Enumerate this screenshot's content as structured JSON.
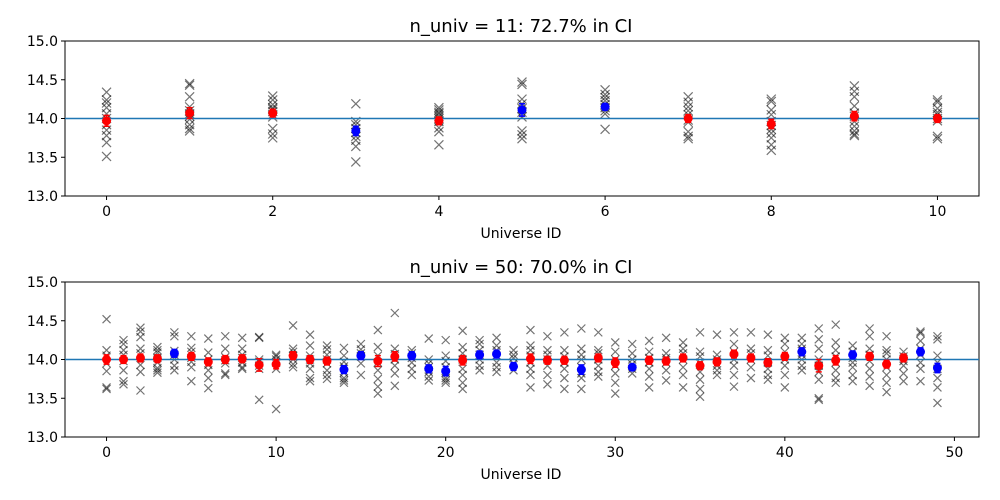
{
  "colors": {
    "ref_line": "#1f77b4",
    "in_ci": "#ff0000",
    "out_ci": "#0000ff",
    "sample": "#000000"
  },
  "chart_data": [
    {
      "type": "scatter",
      "title": "n_univ = 11: 72.7% in CI",
      "xlabel": "Universe ID",
      "ylabel": "",
      "xlim": [
        -0.5,
        10.5
      ],
      "ylim": [
        13.0,
        15.0
      ],
      "xticks": [
        0,
        2,
        4,
        6,
        8,
        10
      ],
      "yticks": [
        13.0,
        13.5,
        14.0,
        14.5,
        15.0
      ],
      "reference_line": 14.0,
      "samples": [
        [
          13.51,
          13.69,
          13.78,
          13.85,
          13.92,
          14.0,
          14.06,
          14.14,
          14.2,
          14.24,
          14.34
        ],
        [
          13.84,
          13.87,
          13.92,
          13.99,
          14.03,
          14.06,
          14.1,
          14.15,
          14.28,
          14.43,
          14.45
        ],
        [
          13.75,
          13.8,
          13.87,
          14.02,
          14.05,
          14.09,
          14.12,
          14.14,
          14.18,
          14.24,
          14.29
        ],
        [
          13.44,
          13.64,
          13.72,
          13.77,
          13.82,
          13.87,
          13.92,
          13.96,
          14.19
        ],
        [
          13.66,
          13.83,
          13.88,
          13.96,
          14.0,
          14.03,
          14.06,
          14.08,
          14.11,
          14.14
        ],
        [
          13.74,
          13.79,
          13.84,
          14.02,
          14.08,
          14.13,
          14.19,
          14.25,
          14.44,
          14.47
        ],
        [
          13.86,
          14.06,
          14.1,
          14.14,
          14.18,
          14.23,
          14.27,
          14.31,
          14.37
        ],
        [
          13.74,
          13.77,
          13.83,
          13.95,
          13.98,
          14.05,
          14.1,
          14.15,
          14.21,
          14.28
        ],
        [
          13.59,
          13.66,
          13.75,
          13.81,
          13.86,
          13.91,
          13.96,
          14.05,
          14.11,
          14.22,
          14.25
        ],
        [
          13.78,
          13.8,
          13.84,
          13.9,
          13.96,
          14.03,
          14.07,
          14.16,
          14.28,
          14.35,
          14.42
        ],
        [
          13.74,
          13.77,
          13.97,
          14.0,
          14.05,
          14.08,
          14.13,
          14.21,
          14.24
        ]
      ],
      "means": [
        13.97,
        14.07,
        14.07,
        13.84,
        13.97,
        14.11,
        14.15,
        14.0,
        13.93,
        14.03,
        14.0
      ],
      "errors": [
        0.07,
        0.07,
        0.05,
        0.06,
        0.05,
        0.08,
        0.04,
        0.05,
        0.06,
        0.06,
        0.05
      ],
      "in_ci": [
        true,
        true,
        true,
        false,
        true,
        false,
        false,
        true,
        true,
        true,
        true
      ]
    },
    {
      "type": "scatter",
      "title": "n_univ = 50: 70.0% in CI",
      "xlabel": "Universe ID",
      "ylabel": "",
      "xlim": [
        -2.45,
        51.45
      ],
      "ylim": [
        13.0,
        15.0
      ],
      "xticks": [
        0,
        10,
        20,
        30,
        40,
        50
      ],
      "yticks": [
        13.0,
        13.5,
        14.0,
        14.5,
        15.0
      ],
      "reference_line": 14.0,
      "means": [
        14.0,
        14.0,
        14.02,
        14.01,
        14.08,
        14.04,
        13.97,
        14.0,
        14.01,
        13.93,
        13.94,
        14.05,
        14.0,
        13.98,
        13.87,
        14.05,
        13.98,
        14.04,
        14.05,
        13.88,
        13.85,
        13.99,
        14.06,
        14.07,
        13.91,
        14.01,
        13.99,
        13.99,
        13.87,
        14.02,
        13.96,
        13.9,
        13.99,
        13.98,
        14.02,
        13.92,
        13.97,
        14.07,
        14.02,
        13.96,
        14.04,
        14.1,
        13.92,
        13.99,
        14.06,
        14.04,
        13.94,
        14.02,
        14.1,
        13.89
      ],
      "errors": [
        0.06,
        0.05,
        0.05,
        0.05,
        0.05,
        0.05,
        0.05,
        0.05,
        0.05,
        0.08,
        0.06,
        0.05,
        0.05,
        0.05,
        0.05,
        0.05,
        0.07,
        0.06,
        0.05,
        0.05,
        0.06,
        0.06,
        0.05,
        0.05,
        0.05,
        0.06,
        0.05,
        0.05,
        0.06,
        0.05,
        0.06,
        0.04,
        0.05,
        0.05,
        0.05,
        0.05,
        0.05,
        0.05,
        0.05,
        0.05,
        0.05,
        0.05,
        0.08,
        0.06,
        0.05,
        0.05,
        0.05,
        0.05,
        0.05,
        0.06
      ],
      "in_ci": [
        true,
        true,
        true,
        true,
        false,
        true,
        true,
        true,
        true,
        true,
        true,
        true,
        true,
        true,
        false,
        false,
        true,
        true,
        false,
        false,
        false,
        true,
        false,
        false,
        false,
        true,
        true,
        true,
        false,
        true,
        true,
        false,
        true,
        true,
        true,
        true,
        true,
        true,
        true,
        true,
        true,
        false,
        true,
        true,
        false,
        true,
        true,
        true,
        false,
        false
      ],
      "samples": [
        [
          13.62,
          13.64,
          13.85,
          13.95,
          14.05,
          14.12,
          14.52
        ],
        [
          13.68,
          13.72,
          13.86,
          13.98,
          14.06,
          14.12,
          14.2,
          14.25
        ],
        [
          13.6,
          13.84,
          13.93,
          14.08,
          14.14,
          14.29,
          14.36,
          14.41
        ],
        [
          13.83,
          13.86,
          13.89,
          13.96,
          14.02,
          14.09,
          14.12,
          14.16
        ],
        [
          13.86,
          13.92,
          14.0,
          14.06,
          14.11,
          14.3,
          14.35
        ],
        [
          13.72,
          13.9,
          13.97,
          14.02,
          14.1,
          14.15,
          14.3
        ],
        [
          13.63,
          13.76,
          13.86,
          13.93,
          14.0,
          14.09,
          14.27
        ],
        [
          13.8,
          13.82,
          13.95,
          13.99,
          14.03,
          14.14,
          14.3
        ],
        [
          13.88,
          13.9,
          13.96,
          14.02,
          14.06,
          14.14,
          14.28
        ],
        [
          13.48,
          13.88,
          13.92,
          13.97,
          14.0,
          14.28,
          14.29
        ],
        [
          13.36,
          13.88,
          13.96,
          14.0,
          14.04,
          14.06
        ],
        [
          13.9,
          13.94,
          14.0,
          14.05,
          14.1,
          14.14,
          14.44
        ],
        [
          13.72,
          13.76,
          13.88,
          13.95,
          14.0,
          14.05,
          14.18,
          14.32
        ],
        [
          13.75,
          13.8,
          13.86,
          13.95,
          14.0,
          14.06,
          14.13,
          14.18
        ],
        [
          13.7,
          13.73,
          13.76,
          13.83,
          13.91,
          13.97,
          14.05,
          14.15
        ],
        [
          13.8,
          13.95,
          14.04,
          14.08,
          14.13,
          14.2
        ],
        [
          13.56,
          13.65,
          13.75,
          13.86,
          13.96,
          14.05,
          14.16,
          14.38
        ],
        [
          13.66,
          13.82,
          13.92,
          14.0,
          14.07,
          14.14,
          14.6
        ],
        [
          13.8,
          13.88,
          13.96,
          14.02,
          14.08,
          14.12
        ],
        [
          13.73,
          13.78,
          13.84,
          13.9,
          13.95,
          14.0,
          14.27
        ],
        [
          13.7,
          13.73,
          13.76,
          13.83,
          13.9,
          13.98,
          14.05,
          14.25
        ],
        [
          13.62,
          13.7,
          13.8,
          13.88,
          14.0,
          14.08,
          14.16,
          14.37
        ],
        [
          13.86,
          13.92,
          14.0,
          14.06,
          14.12,
          14.2,
          14.25
        ],
        [
          13.84,
          13.9,
          13.96,
          14.05,
          14.12,
          14.18,
          14.28
        ],
        [
          13.86,
          13.95,
          14.02,
          14.06,
          14.12
        ],
        [
          13.64,
          13.8,
          13.88,
          13.96,
          14.05,
          14.12,
          14.18,
          14.38
        ],
        [
          13.68,
          13.8,
          13.92,
          14.0,
          14.06,
          14.12,
          14.3
        ],
        [
          13.62,
          13.76,
          13.88,
          13.96,
          14.04,
          14.12,
          14.35
        ],
        [
          13.62,
          13.76,
          13.82,
          13.9,
          14.0,
          14.06,
          14.14,
          14.4
        ],
        [
          13.78,
          13.84,
          13.92,
          14.0,
          14.08,
          14.12,
          14.35
        ],
        [
          13.56,
          13.7,
          13.82,
          13.92,
          14.0,
          14.1,
          14.22
        ],
        [
          13.82,
          13.88,
          13.94,
          14.0,
          14.08,
          14.2
        ],
        [
          13.64,
          13.78,
          13.88,
          13.96,
          14.02,
          14.1,
          14.24
        ],
        [
          13.73,
          13.86,
          13.96,
          14.02,
          14.08,
          14.28
        ],
        [
          13.64,
          13.8,
          13.9,
          14.0,
          14.08,
          14.14,
          14.22
        ],
        [
          13.52,
          13.62,
          13.74,
          13.84,
          13.96,
          14.04,
          14.1,
          14.35
        ],
        [
          13.8,
          13.86,
          13.92,
          14.0,
          14.06,
          14.32
        ],
        [
          13.65,
          13.8,
          13.92,
          14.0,
          14.1,
          14.2,
          14.35
        ],
        [
          13.76,
          13.9,
          14.0,
          14.08,
          14.14,
          14.35
        ],
        [
          13.74,
          13.8,
          13.88,
          13.96,
          14.05,
          14.12,
          14.32
        ],
        [
          13.64,
          13.8,
          13.92,
          14.0,
          14.1,
          14.2,
          14.28
        ],
        [
          13.86,
          13.92,
          14.0,
          14.06,
          14.14,
          14.2,
          14.28
        ],
        [
          13.48,
          13.5,
          13.74,
          13.84,
          13.92,
          14.0,
          14.14,
          14.26,
          14.4
        ],
        [
          13.7,
          13.76,
          13.86,
          13.96,
          14.04,
          14.12,
          14.22,
          14.45
        ],
        [
          13.72,
          13.8,
          13.9,
          13.96,
          14.02,
          14.1,
          14.18
        ],
        [
          13.66,
          13.78,
          13.88,
          13.98,
          14.06,
          14.14,
          14.3,
          14.4
        ],
        [
          13.58,
          13.7,
          13.8,
          13.9,
          14.0,
          14.08,
          14.12,
          14.3
        ],
        [
          13.72,
          13.82,
          13.92,
          13.98,
          14.04,
          14.1
        ],
        [
          13.72,
          13.88,
          13.96,
          14.06,
          14.14,
          14.24,
          14.34,
          14.36
        ],
        [
          13.44,
          13.64,
          13.76,
          13.88,
          13.96,
          14.05,
          14.26,
          14.3
        ]
      ]
    }
  ]
}
